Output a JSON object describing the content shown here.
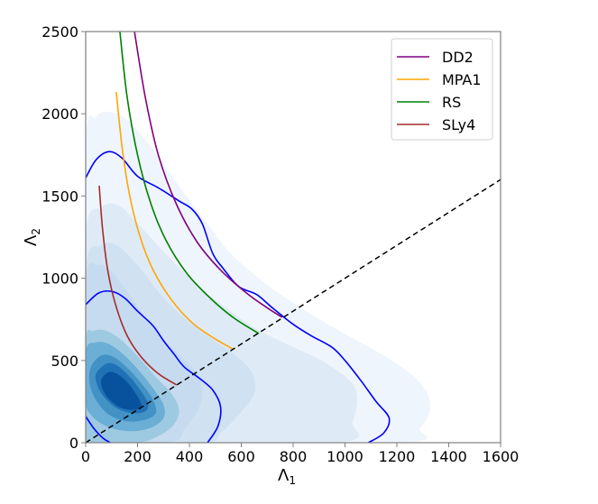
{
  "chart_data": {
    "type": "contour",
    "title": "",
    "xlabel": "Λ1",
    "ylabel": "Λ2",
    "xlim": [
      0,
      1600
    ],
    "ylim": [
      0,
      2500
    ],
    "xticks": [
      0,
      200,
      400,
      600,
      800,
      1000,
      1200,
      1400,
      1600
    ],
    "yticks": [
      0,
      500,
      1000,
      1500,
      2000,
      2500
    ],
    "grid": false,
    "legend_position": "upper right",
    "legend": [
      {
        "label": "DD2",
        "color": "#800080"
      },
      {
        "label": "MPA1",
        "color": "#ffa500"
      },
      {
        "label": "RS",
        "color": "#008000"
      },
      {
        "label": "SLy4",
        "color": "#a52a2a"
      }
    ],
    "eos_curves": [
      {
        "name": "DD2",
        "color": "#800080",
        "points": [
          [
            188,
            2500
          ],
          [
            230,
            2100
          ],
          [
            280,
            1750
          ],
          [
            350,
            1450
          ],
          [
            430,
            1220
          ],
          [
            520,
            1050
          ],
          [
            620,
            910
          ],
          [
            700,
            820
          ],
          [
            758,
            762
          ]
        ]
      },
      {
        "name": "MPA1",
        "color": "#ffa500",
        "points": [
          [
            118,
            2133
          ],
          [
            140,
            1800
          ],
          [
            170,
            1500
          ],
          [
            210,
            1250
          ],
          [
            260,
            1050
          ],
          [
            330,
            870
          ],
          [
            410,
            730
          ],
          [
            490,
            640
          ],
          [
            567,
            570
          ]
        ]
      },
      {
        "name": "RS",
        "color": "#008000",
        "points": [
          [
            132,
            2500
          ],
          [
            160,
            2100
          ],
          [
            200,
            1750
          ],
          [
            250,
            1460
          ],
          [
            310,
            1230
          ],
          [
            390,
            1030
          ],
          [
            480,
            880
          ],
          [
            570,
            760
          ],
          [
            668,
            663
          ]
        ]
      },
      {
        "name": "SLy4",
        "color": "#a52a2a",
        "points": [
          [
            52,
            1563
          ],
          [
            65,
            1300
          ],
          [
            85,
            1050
          ],
          [
            115,
            840
          ],
          [
            160,
            650
          ],
          [
            215,
            520
          ],
          [
            280,
            420
          ],
          [
            351,
            351
          ]
        ]
      }
    ],
    "diagonal": {
      "style": "dashed",
      "color": "#000000",
      "points": [
        [
          0,
          0
        ],
        [
          1600,
          1600
        ]
      ]
    },
    "credible_contours": {
      "color": "#0000ff",
      "outer_90": [
        [
          0,
          1610
        ],
        [
          40,
          1720
        ],
        [
          90,
          1770
        ],
        [
          140,
          1730
        ],
        [
          200,
          1620
        ],
        [
          280,
          1550
        ],
        [
          360,
          1470
        ],
        [
          410,
          1420
        ],
        [
          450,
          1330
        ],
        [
          490,
          1150
        ],
        [
          530,
          1060
        ],
        [
          590,
          950
        ],
        [
          660,
          900
        ],
        [
          720,
          820
        ],
        [
          800,
          720
        ],
        [
          870,
          650
        ],
        [
          950,
          580
        ],
        [
          1000,
          500
        ],
        [
          1060,
          380
        ],
        [
          1120,
          250
        ],
        [
          1170,
          150
        ],
        [
          1150,
          60
        ],
        [
          1090,
          0
        ]
      ],
      "inner_50": [
        [
          0,
          840
        ],
        [
          50,
          910
        ],
        [
          100,
          920
        ],
        [
          150,
          880
        ],
        [
          200,
          800
        ],
        [
          260,
          710
        ],
        [
          300,
          620
        ],
        [
          340,
          540
        ],
        [
          380,
          460
        ],
        [
          440,
          390
        ],
        [
          490,
          320
        ],
        [
          520,
          220
        ],
        [
          510,
          100
        ],
        [
          470,
          0
        ]
      ],
      "inner_50_left_tail": [
        [
          0,
          160
        ],
        [
          30,
          90
        ],
        [
          65,
          30
        ],
        [
          95,
          0
        ]
      ]
    },
    "density_levels": [
      {
        "level": 1,
        "color": "#eff5fc"
      },
      {
        "level": 2,
        "color": "#deebf7"
      },
      {
        "level": 3,
        "color": "#d0e2f2"
      },
      {
        "level": 4,
        "color": "#c6dbef"
      },
      {
        "level": 5,
        "color": "#9ecae1"
      },
      {
        "level": 6,
        "color": "#6baed6"
      },
      {
        "level": 7,
        "color": "#4292c6"
      },
      {
        "level": 8,
        "color": "#2171b5"
      },
      {
        "level": 9,
        "color": "#08519c"
      }
    ],
    "density_shapes": [
      {
        "color": "#eff5fc",
        "points": [
          [
            0,
            1780
          ],
          [
            40,
            1980
          ],
          [
            100,
            2010
          ],
          [
            170,
            1950
          ],
          [
            260,
            1780
          ],
          [
            360,
            1560
          ],
          [
            470,
            1330
          ],
          [
            560,
            1150
          ],
          [
            700,
            960
          ],
          [
            850,
            800
          ],
          [
            1000,
            660
          ],
          [
            1150,
            530
          ],
          [
            1280,
            380
          ],
          [
            1330,
            230
          ],
          [
            1290,
            90
          ],
          [
            1200,
            0
          ],
          [
            0,
            0
          ]
        ]
      },
      {
        "color": "#deebf7",
        "points": [
          [
            0,
            1250
          ],
          [
            60,
            1430
          ],
          [
            130,
            1440
          ],
          [
            220,
            1300
          ],
          [
            320,
            1130
          ],
          [
            430,
            960
          ],
          [
            540,
            820
          ],
          [
            660,
            690
          ],
          [
            790,
            590
          ],
          [
            930,
            480
          ],
          [
            1040,
            330
          ],
          [
            1030,
            130
          ],
          [
            960,
            0
          ],
          [
            0,
            0
          ]
        ]
      },
      {
        "color": "#d0e2f2",
        "points": [
          [
            0,
            1050
          ],
          [
            60,
            1200
          ],
          [
            120,
            1200
          ],
          [
            200,
            1080
          ],
          [
            290,
            900
          ],
          [
            380,
            760
          ],
          [
            480,
            640
          ],
          [
            570,
            540
          ],
          [
            640,
            430
          ],
          [
            650,
            300
          ],
          [
            590,
            170
          ],
          [
            520,
            60
          ],
          [
            450,
            0
          ],
          [
            0,
            0
          ]
        ]
      },
      {
        "color": "#c6dbef",
        "points": [
          [
            0,
            980
          ],
          [
            50,
            1080
          ],
          [
            100,
            1040
          ],
          [
            160,
            920
          ],
          [
            230,
            760
          ],
          [
            300,
            630
          ],
          [
            370,
            520
          ],
          [
            430,
            420
          ],
          [
            450,
            300
          ],
          [
            430,
            190
          ],
          [
            380,
            80
          ],
          [
            320,
            0
          ],
          [
            0,
            0
          ]
        ]
      },
      {
        "color": "#9ecae1",
        "points": [
          [
            0,
            620
          ],
          [
            30,
            680
          ],
          [
            80,
            680
          ],
          [
            140,
            620
          ],
          [
            210,
            510
          ],
          [
            270,
            400
          ],
          [
            330,
            300
          ],
          [
            360,
            200
          ],
          [
            340,
            110
          ],
          [
            280,
            40
          ],
          [
            200,
            0
          ],
          [
            40,
            0
          ],
          [
            0,
            30
          ]
        ]
      },
      {
        "color": "#6baed6",
        "points": [
          [
            0,
            560
          ],
          [
            40,
            610
          ],
          [
            90,
            600
          ],
          [
            150,
            530
          ],
          [
            210,
            430
          ],
          [
            260,
            330
          ],
          [
            300,
            230
          ],
          [
            300,
            150
          ],
          [
            250,
            90
          ],
          [
            170,
            70
          ],
          [
            80,
            100
          ],
          [
            20,
            170
          ],
          [
            0,
            260
          ]
        ]
      },
      {
        "color": "#4292c6",
        "points": [
          [
            20,
            460
          ],
          [
            60,
            530
          ],
          [
            110,
            520
          ],
          [
            170,
            440
          ],
          [
            220,
            350
          ],
          [
            260,
            260
          ],
          [
            270,
            180
          ],
          [
            230,
            140
          ],
          [
            160,
            130
          ],
          [
            90,
            170
          ],
          [
            40,
            260
          ],
          [
            15,
            360
          ]
        ]
      },
      {
        "color": "#2171b5",
        "points": [
          [
            40,
            420
          ],
          [
            80,
            480
          ],
          [
            120,
            470
          ],
          [
            170,
            400
          ],
          [
            210,
            320
          ],
          [
            240,
            240
          ],
          [
            230,
            190
          ],
          [
            180,
            180
          ],
          [
            120,
            210
          ],
          [
            70,
            280
          ],
          [
            45,
            350
          ]
        ]
      },
      {
        "color": "#08519c",
        "points": [
          [
            60,
            380
          ],
          [
            90,
            430
          ],
          [
            130,
            410
          ],
          [
            170,
            350
          ],
          [
            200,
            280
          ],
          [
            215,
            220
          ],
          [
            190,
            200
          ],
          [
            140,
            210
          ],
          [
            100,
            250
          ],
          [
            70,
            310
          ]
        ]
      }
    ]
  },
  "axes": {
    "xlabel_main": "Λ",
    "xlabel_sub": "1",
    "ylabel_main": "Λ",
    "ylabel_sub": "2",
    "xtick_labels": [
      "0",
      "200",
      "400",
      "600",
      "800",
      "1000",
      "1200",
      "1400",
      "1600"
    ],
    "ytick_labels": [
      "0",
      "500",
      "1000",
      "1500",
      "2000",
      "2500"
    ]
  },
  "legend": {
    "items": [
      {
        "label": "DD2",
        "color": "#800080"
      },
      {
        "label": "MPA1",
        "color": "#ffa500"
      },
      {
        "label": "RS",
        "color": "#008000"
      },
      {
        "label": "SLy4",
        "color": "#a52a2a"
      }
    ]
  }
}
